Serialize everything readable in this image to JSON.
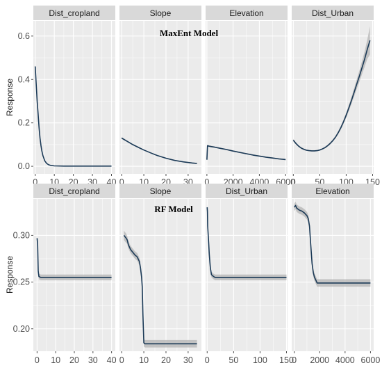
{
  "chart_data": [
    {
      "type": "line",
      "title": "MaxEnt Model",
      "ylabel": "Response",
      "ylim": [
        -0.035,
        0.67
      ],
      "yticks": [
        0.0,
        0.2,
        0.4,
        0.6
      ],
      "ytick_labels": [
        "0.0",
        "0.2",
        "0.4",
        "0.6"
      ],
      "colors": {
        "line": "#1b3a57",
        "ribbon": "#b4b4b4",
        "panel": "#ebebeb",
        "strip": "#d9d9d9",
        "grid": "#ffffff"
      },
      "panels": [
        {
          "strip": "Dist_cropland",
          "xlim": [
            -1,
            42
          ],
          "xticks": [
            0,
            10,
            20,
            30,
            40
          ],
          "xtick_labels": [
            "0",
            "10",
            "20",
            "30",
            "40"
          ],
          "x": [
            0,
            0.5,
            1,
            1.5,
            2,
            2.5,
            3,
            3.5,
            4,
            5,
            6,
            7,
            8,
            10,
            15,
            20,
            30,
            40
          ],
          "y": [
            0.46,
            0.38,
            0.3,
            0.24,
            0.18,
            0.13,
            0.095,
            0.07,
            0.05,
            0.025,
            0.013,
            0.007,
            0.004,
            0.002,
            0.001,
            0.001,
            0.001,
            0.001
          ],
          "band": [
            0.01,
            0.01,
            0.008,
            0.007,
            0.006,
            0.005,
            0.004,
            0.003,
            0.003,
            0.002,
            0.001,
            0.001,
            0.001,
            0.001,
            0.001,
            0.001,
            0.001,
            0.001
          ]
        },
        {
          "strip": "Slope",
          "xlim": [
            -1,
            36
          ],
          "xticks": [
            0,
            10,
            20,
            30
          ],
          "xtick_labels": [
            "0",
            "10",
            "20",
            "30"
          ],
          "x": [
            0,
            2,
            5,
            8,
            10,
            13,
            16,
            20,
            24,
            28,
            32,
            34
          ],
          "y": [
            0.13,
            0.118,
            0.1,
            0.085,
            0.075,
            0.062,
            0.05,
            0.037,
            0.027,
            0.02,
            0.015,
            0.013
          ],
          "band": [
            0.004,
            0.003,
            0.003,
            0.003,
            0.002,
            0.002,
            0.002,
            0.002,
            0.002,
            0.002,
            0.003,
            0.003
          ]
        },
        {
          "strip": "Elevation",
          "xlim": [
            -100,
            6150
          ],
          "xticks": [
            0,
            2000,
            4000,
            6000
          ],
          "xtick_labels": [
            "0",
            "2000",
            "4000",
            "6000"
          ],
          "x": [
            0,
            50,
            150,
            300,
            600,
            1000,
            1500,
            2000,
            2500,
            3000,
            3500,
            4000,
            4500,
            5000,
            5500,
            6000
          ],
          "y": [
            0.03,
            0.095,
            0.093,
            0.091,
            0.088,
            0.083,
            0.077,
            0.07,
            0.064,
            0.058,
            0.052,
            0.047,
            0.042,
            0.038,
            0.034,
            0.031
          ],
          "band": [
            0.003,
            0.005,
            0.004,
            0.004,
            0.003,
            0.003,
            0.003,
            0.003,
            0.003,
            0.003,
            0.003,
            0.003,
            0.003,
            0.003,
            0.003,
            0.003
          ]
        },
        {
          "strip": "Dist_Urban",
          "xlim": [
            -3,
            152
          ],
          "xticks": [
            0,
            50,
            100,
            150
          ],
          "xtick_labels": [
            "0",
            "50",
            "100",
            "150"
          ],
          "x": [
            0,
            5,
            10,
            15,
            20,
            25,
            30,
            35,
            40,
            45,
            50,
            55,
            60,
            65,
            70,
            75,
            80,
            85,
            90,
            95,
            100,
            105,
            110,
            115,
            120,
            125,
            130,
            135,
            140,
            145
          ],
          "y": [
            0.12,
            0.105,
            0.093,
            0.084,
            0.078,
            0.074,
            0.072,
            0.071,
            0.071,
            0.072,
            0.075,
            0.08,
            0.086,
            0.095,
            0.106,
            0.119,
            0.135,
            0.155,
            0.178,
            0.205,
            0.235,
            0.268,
            0.303,
            0.34,
            0.378,
            0.415,
            0.455,
            0.495,
            0.54,
            0.58
          ],
          "band": [
            0.006,
            0.005,
            0.004,
            0.004,
            0.004,
            0.003,
            0.003,
            0.003,
            0.003,
            0.003,
            0.003,
            0.003,
            0.004,
            0.004,
            0.005,
            0.005,
            0.006,
            0.007,
            0.008,
            0.01,
            0.012,
            0.014,
            0.016,
            0.019,
            0.022,
            0.026,
            0.03,
            0.036,
            0.045,
            0.065
          ]
        }
      ]
    },
    {
      "type": "line",
      "title": "RF Model",
      "ylabel": "Response",
      "ylim": [
        0.176,
        0.339
      ],
      "yticks": [
        0.2,
        0.25,
        0.3
      ],
      "ytick_labels": [
        "0.20",
        "0.25",
        "0.30"
      ],
      "colors": {
        "line": "#1b3a57",
        "ribbon": "#b4b4b4",
        "panel": "#ebebeb",
        "strip": "#d9d9d9",
        "grid": "#ffffff"
      },
      "panels": [
        {
          "strip": "Dist_cropland",
          "xlim": [
            -2,
            42
          ],
          "xticks": [
            0,
            10,
            20,
            30,
            40
          ],
          "xtick_labels": [
            "0",
            "10",
            "20",
            "30",
            "40"
          ],
          "x": [
            0,
            0.3,
            0.6,
            1,
            2,
            5,
            10,
            20,
            30,
            40
          ],
          "y": [
            0.297,
            0.29,
            0.262,
            0.256,
            0.255,
            0.255,
            0.255,
            0.255,
            0.255,
            0.255
          ],
          "band": [
            0.003,
            0.003,
            0.003,
            0.003,
            0.003,
            0.003,
            0.003,
            0.003,
            0.003,
            0.003
          ]
        },
        {
          "strip": "Slope",
          "xlim": [
            -1,
            36
          ],
          "xticks": [
            0,
            10,
            20,
            30
          ],
          "xtick_labels": [
            "0",
            "10",
            "20",
            "30"
          ],
          "x": [
            1,
            2,
            2.5,
            3,
            4,
            5,
            6,
            7,
            8,
            8.5,
            9,
            9.3,
            9.6,
            10,
            10.5,
            15,
            20,
            25,
            30,
            34
          ],
          "y": [
            0.3,
            0.297,
            0.295,
            0.29,
            0.285,
            0.282,
            0.279,
            0.277,
            0.272,
            0.265,
            0.255,
            0.245,
            0.215,
            0.185,
            0.184,
            0.184,
            0.184,
            0.184,
            0.184,
            0.184
          ],
          "band": [
            0.005,
            0.005,
            0.004,
            0.004,
            0.004,
            0.004,
            0.004,
            0.004,
            0.004,
            0.004,
            0.004,
            0.004,
            0.004,
            0.004,
            0.004,
            0.004,
            0.004,
            0.004,
            0.004,
            0.004
          ]
        },
        {
          "strip": "Dist_Urban",
          "xlim": [
            -3,
            152
          ],
          "xticks": [
            0,
            50,
            100,
            150
          ],
          "xtick_labels": [
            "0",
            "50",
            "100",
            "150"
          ],
          "x": [
            0,
            0.5,
            1,
            2,
            3,
            4,
            5,
            6,
            7,
            8,
            10,
            12,
            15,
            20,
            30,
            50,
            100,
            150
          ],
          "y": [
            0.33,
            0.325,
            0.31,
            0.3,
            0.29,
            0.28,
            0.272,
            0.265,
            0.262,
            0.258,
            0.257,
            0.256,
            0.255,
            0.255,
            0.255,
            0.255,
            0.255,
            0.255
          ],
          "band": [
            0.003,
            0.003,
            0.003,
            0.003,
            0.003,
            0.003,
            0.003,
            0.003,
            0.003,
            0.003,
            0.003,
            0.003,
            0.003,
            0.003,
            0.003,
            0.003,
            0.003,
            0.003
          ]
        },
        {
          "strip": "Elevation",
          "xlim": [
            -200,
            6250
          ],
          "xticks": [
            0,
            2000,
            4000,
            6000
          ],
          "xtick_labels": [
            "0",
            "2000",
            "4000",
            "6000"
          ],
          "x": [
            0,
            100,
            200,
            400,
            600,
            800,
            1000,
            1100,
            1200,
            1300,
            1400,
            1500,
            1600,
            1700,
            1800,
            2000,
            2500,
            3000,
            4000,
            5000,
            6000
          ],
          "y": [
            0.33,
            0.332,
            0.329,
            0.327,
            0.326,
            0.324,
            0.321,
            0.318,
            0.31,
            0.29,
            0.27,
            0.26,
            0.255,
            0.252,
            0.249,
            0.249,
            0.249,
            0.249,
            0.249,
            0.249,
            0.249
          ],
          "band": [
            0.004,
            0.004,
            0.004,
            0.004,
            0.004,
            0.004,
            0.004,
            0.004,
            0.004,
            0.004,
            0.004,
            0.004,
            0.004,
            0.004,
            0.004,
            0.004,
            0.004,
            0.004,
            0.004,
            0.004,
            0.004
          ]
        }
      ]
    }
  ]
}
